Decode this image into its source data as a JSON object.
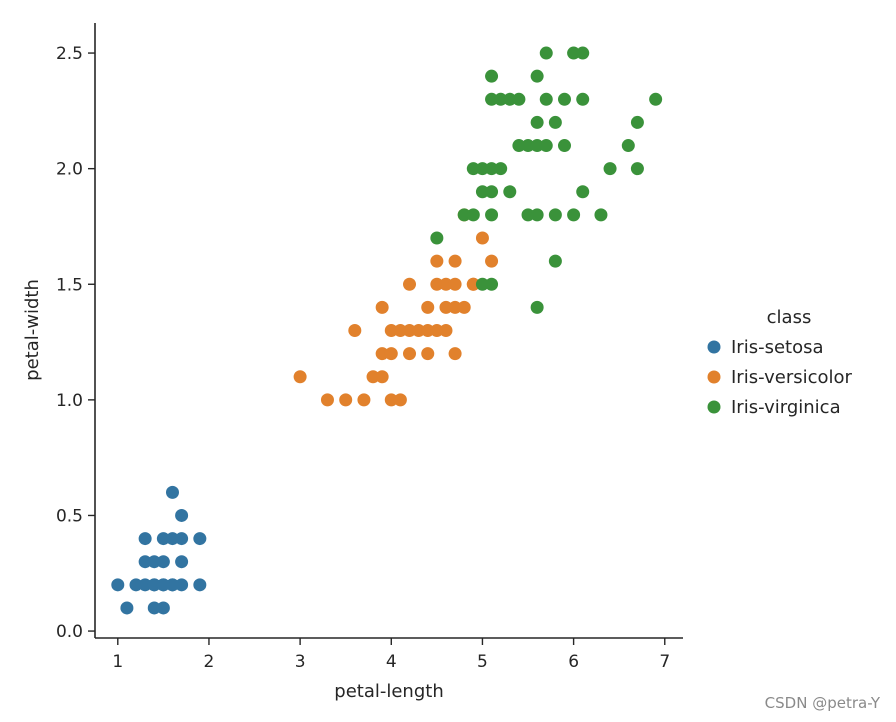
{
  "chart_data": {
    "type": "scatter",
    "xlabel": "petal-length",
    "ylabel": "petal-width",
    "xlim": [
      0.75,
      7.2
    ],
    "ylim": [
      -0.03,
      2.63
    ],
    "xticks": [
      "1",
      "2",
      "3",
      "4",
      "5",
      "6",
      "7"
    ],
    "yticks": [
      "0.0",
      "0.5",
      "1.0",
      "1.5",
      "2.0",
      "2.5"
    ],
    "grid": false,
    "legend_title": "class",
    "legend_position": "right",
    "series": [
      {
        "name": "Iris-setosa",
        "color": "#3274a1",
        "points": [
          [
            1.0,
            0.2
          ],
          [
            1.1,
            0.1
          ],
          [
            1.2,
            0.2
          ],
          [
            1.3,
            0.2
          ],
          [
            1.4,
            0.2
          ],
          [
            1.5,
            0.2
          ],
          [
            1.6,
            0.2
          ],
          [
            1.7,
            0.2
          ],
          [
            1.9,
            0.2
          ],
          [
            1.3,
            0.3
          ],
          [
            1.4,
            0.3
          ],
          [
            1.5,
            0.3
          ],
          [
            1.7,
            0.3
          ],
          [
            1.3,
            0.4
          ],
          [
            1.5,
            0.4
          ],
          [
            1.6,
            0.4
          ],
          [
            1.7,
            0.4
          ],
          [
            1.9,
            0.4
          ],
          [
            1.4,
            0.1
          ],
          [
            1.5,
            0.1
          ],
          [
            1.7,
            0.5
          ],
          [
            1.6,
            0.6
          ],
          [
            1.6,
            0.2
          ],
          [
            1.4,
            0.2
          ],
          [
            1.5,
            0.2
          ]
        ]
      },
      {
        "name": "Iris-versicolor",
        "color": "#e1812c",
        "points": [
          [
            3.0,
            1.1
          ],
          [
            3.3,
            1.0
          ],
          [
            3.5,
            1.0
          ],
          [
            3.7,
            1.0
          ],
          [
            4.0,
            1.0
          ],
          [
            4.1,
            1.0
          ],
          [
            3.8,
            1.1
          ],
          [
            3.9,
            1.1
          ],
          [
            3.6,
            1.3
          ],
          [
            3.9,
            1.2
          ],
          [
            4.0,
            1.2
          ],
          [
            4.2,
            1.2
          ],
          [
            4.4,
            1.2
          ],
          [
            4.7,
            1.2
          ],
          [
            4.0,
            1.3
          ],
          [
            4.1,
            1.3
          ],
          [
            4.2,
            1.3
          ],
          [
            4.3,
            1.3
          ],
          [
            4.4,
            1.3
          ],
          [
            4.5,
            1.3
          ],
          [
            4.6,
            1.3
          ],
          [
            3.9,
            1.4
          ],
          [
            4.4,
            1.4
          ],
          [
            4.6,
            1.4
          ],
          [
            4.7,
            1.4
          ],
          [
            4.8,
            1.4
          ],
          [
            4.2,
            1.5
          ],
          [
            4.5,
            1.5
          ],
          [
            4.6,
            1.5
          ],
          [
            4.7,
            1.5
          ],
          [
            4.9,
            1.5
          ],
          [
            4.5,
            1.6
          ],
          [
            4.7,
            1.6
          ],
          [
            5.1,
            1.6
          ],
          [
            5.0,
            1.7
          ],
          [
            4.8,
            1.8
          ],
          [
            4.9,
            1.5
          ]
        ]
      },
      {
        "name": "Iris-virginica",
        "color": "#3a923a",
        "points": [
          [
            4.5,
            1.7
          ],
          [
            5.0,
            1.5
          ],
          [
            5.1,
            1.5
          ],
          [
            5.6,
            1.4
          ],
          [
            5.8,
            1.6
          ],
          [
            4.8,
            1.8
          ],
          [
            4.9,
            1.8
          ],
          [
            5.1,
            1.8
          ],
          [
            5.5,
            1.8
          ],
          [
            5.6,
            1.8
          ],
          [
            5.8,
            1.8
          ],
          [
            6.0,
            1.8
          ],
          [
            6.3,
            1.8
          ],
          [
            5.0,
            1.9
          ],
          [
            5.1,
            1.9
          ],
          [
            5.3,
            1.9
          ],
          [
            6.1,
            1.9
          ],
          [
            4.9,
            2.0
          ],
          [
            5.0,
            2.0
          ],
          [
            5.1,
            2.0
          ],
          [
            5.2,
            2.0
          ],
          [
            6.4,
            2.0
          ],
          [
            6.7,
            2.0
          ],
          [
            5.4,
            2.1
          ],
          [
            5.6,
            2.1
          ],
          [
            5.7,
            2.1
          ],
          [
            5.9,
            2.1
          ],
          [
            6.6,
            2.1
          ],
          [
            5.5,
            2.1
          ],
          [
            5.6,
            2.2
          ],
          [
            5.8,
            2.2
          ],
          [
            6.7,
            2.2
          ],
          [
            5.1,
            2.3
          ],
          [
            5.2,
            2.3
          ],
          [
            5.3,
            2.3
          ],
          [
            5.4,
            2.3
          ],
          [
            5.7,
            2.3
          ],
          [
            5.9,
            2.3
          ],
          [
            6.1,
            2.3
          ],
          [
            6.9,
            2.3
          ],
          [
            5.1,
            2.4
          ],
          [
            5.6,
            2.4
          ],
          [
            5.7,
            2.5
          ],
          [
            6.0,
            2.5
          ],
          [
            6.1,
            2.5
          ]
        ]
      }
    ]
  },
  "watermark": "CSDN @petra-Y"
}
